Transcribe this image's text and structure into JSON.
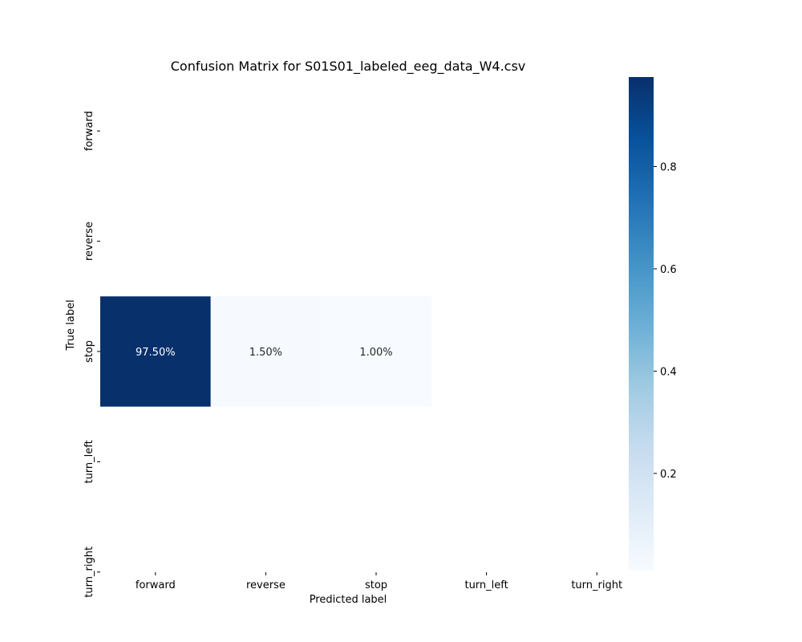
{
  "chart_data": {
    "type": "heatmap",
    "title": "Confusion Matrix for S01S01_labeled_eeg_data_W4.csv",
    "xlabel": "Predicted label",
    "ylabel": "True label",
    "x_categories": [
      "forward",
      "reverse",
      "stop",
      "turn_left",
      "turn_right"
    ],
    "y_categories": [
      "forward",
      "reverse",
      "stop",
      "turn_left",
      "turn_right"
    ],
    "cells": [
      {
        "row": "stop",
        "col": "forward",
        "value": 0.975,
        "label": "97.50%"
      },
      {
        "row": "stop",
        "col": "reverse",
        "value": 0.015,
        "label": "1.50%"
      },
      {
        "row": "stop",
        "col": "stop",
        "value": 0.01,
        "label": "1.00%"
      }
    ],
    "colormap": "Blues",
    "colormap_stops": [
      "#f7fbff",
      "#deebf7",
      "#c6dbef",
      "#9ecae1",
      "#6baed6",
      "#4292c6",
      "#2171b5",
      "#08519c",
      "#08306b"
    ],
    "colorbar": {
      "range": [
        0.01,
        0.975
      ],
      "ticks": [
        0.2,
        0.4,
        0.6,
        0.8
      ],
      "tick_labels": [
        "0.2",
        "0.4",
        "0.6",
        "0.8"
      ]
    },
    "grid": false
  }
}
